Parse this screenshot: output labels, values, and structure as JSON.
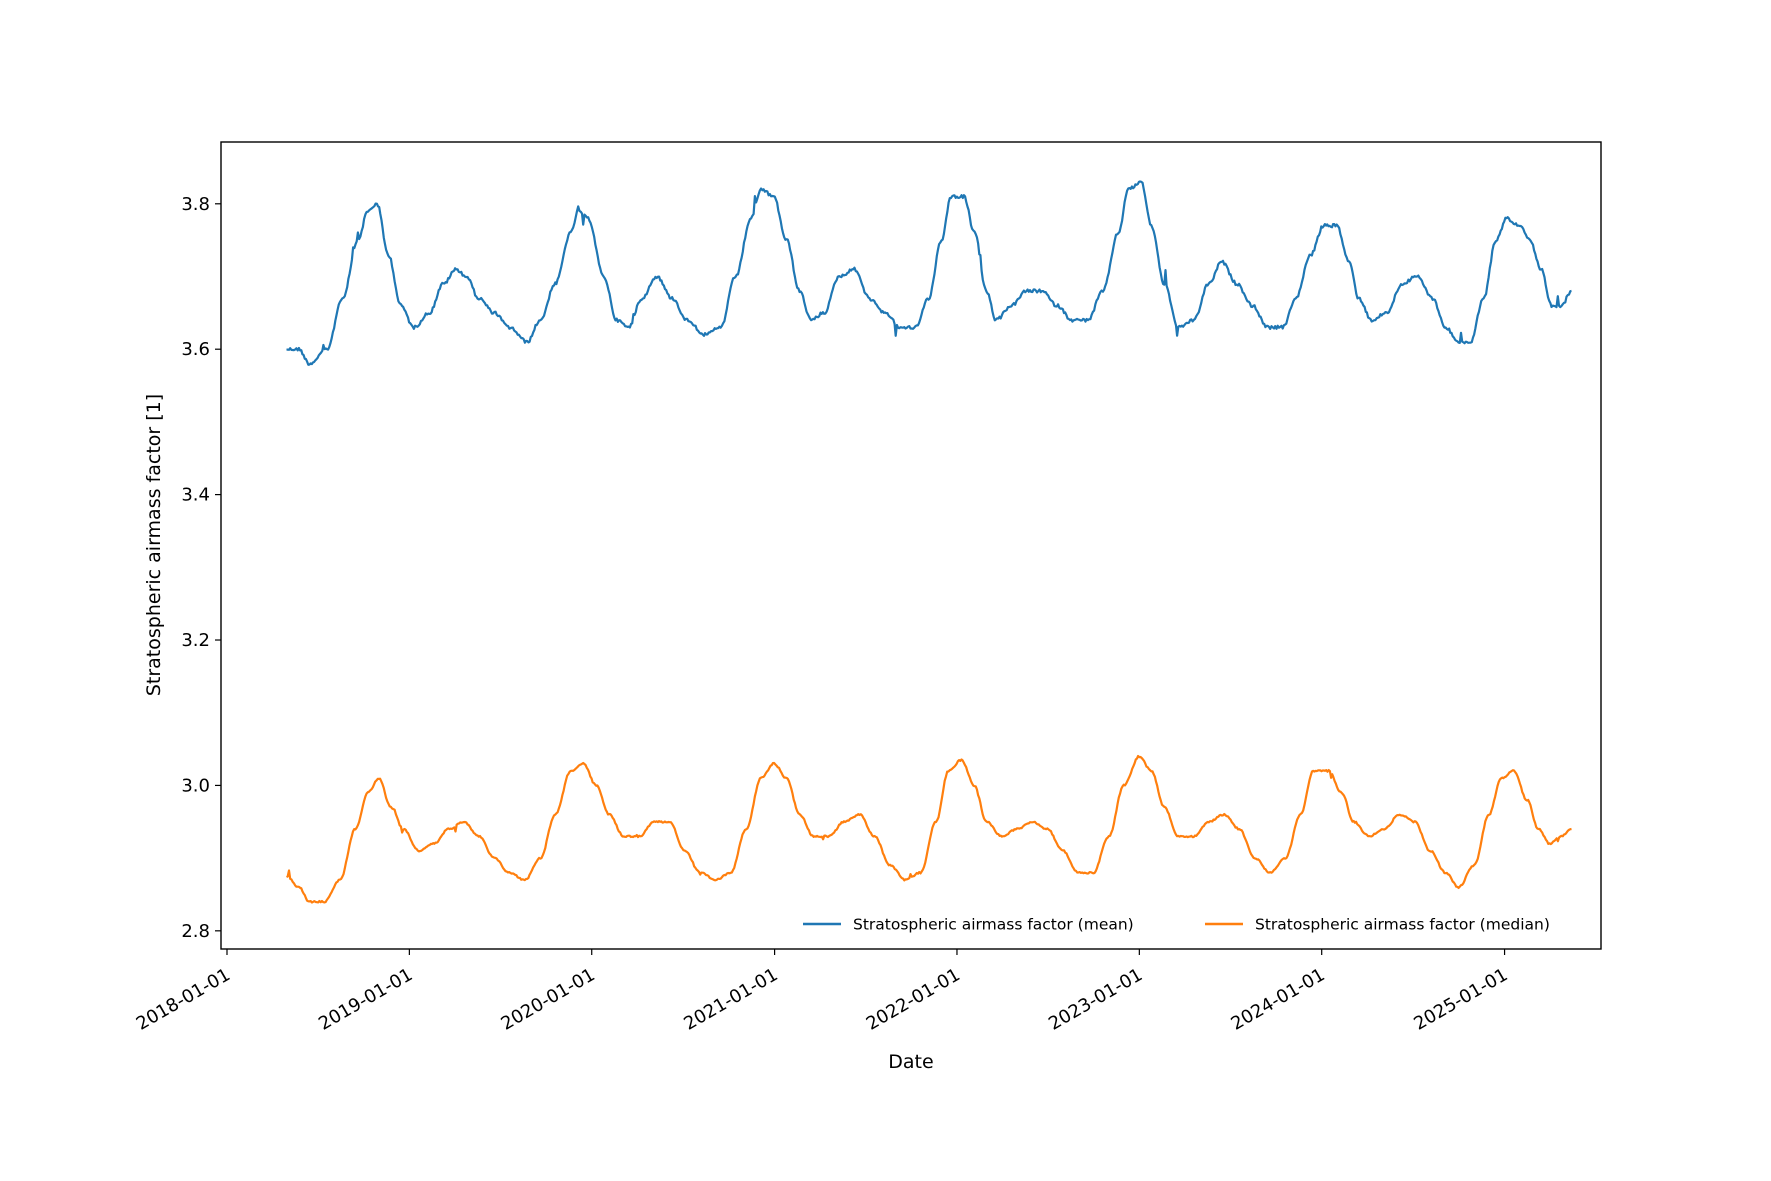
{
  "chart_data": {
    "type": "line",
    "xlabel": "Date",
    "ylabel": "Stratospheric airmass factor [1]",
    "x_ticks": [
      "2018-01-01",
      "2019-01-01",
      "2020-01-01",
      "2021-01-01",
      "2022-01-01",
      "2023-01-01",
      "2024-01-01",
      "2025-01-01"
    ],
    "y_ticks": [
      "2.8",
      "3.0",
      "3.2",
      "3.4",
      "3.6",
      "3.8"
    ],
    "xlim": [
      "2017-12-20",
      "2025-07-13"
    ],
    "ylim": [
      2.775,
      3.885
    ],
    "grid": false,
    "legend_position": "lower-right",
    "series": [
      {
        "name": "Stratospheric airmass factor (mean)",
        "color": "#1f77b4",
        "points": [
          [
            "2018-04-30",
            3.6
          ],
          [
            "2018-05-25",
            3.6
          ],
          [
            "2018-06-15",
            3.58
          ],
          [
            "2018-07-20",
            3.6
          ],
          [
            "2018-08-20",
            3.67
          ],
          [
            "2018-09-20",
            3.75
          ],
          [
            "2018-10-10",
            3.79
          ],
          [
            "2018-10-28",
            3.8
          ],
          [
            "2018-11-20",
            3.73
          ],
          [
            "2018-12-15",
            3.66
          ],
          [
            "2019-01-10",
            3.63
          ],
          [
            "2019-02-10",
            3.65
          ],
          [
            "2019-03-10",
            3.69
          ],
          [
            "2019-04-05",
            3.71
          ],
          [
            "2019-04-25",
            3.7
          ],
          [
            "2019-05-20",
            3.67
          ],
          [
            "2019-06-20",
            3.65
          ],
          [
            "2019-07-20",
            3.63
          ],
          [
            "2019-08-25",
            3.61
          ],
          [
            "2019-09-20",
            3.64
          ],
          [
            "2019-10-20",
            3.69
          ],
          [
            "2019-11-20",
            3.76
          ],
          [
            "2019-12-05",
            3.79
          ],
          [
            "2019-12-25",
            3.78
          ],
          [
            "2020-01-25",
            3.7
          ],
          [
            "2020-02-20",
            3.64
          ],
          [
            "2020-03-15",
            3.63
          ],
          [
            "2020-04-10",
            3.67
          ],
          [
            "2020-05-10",
            3.7
          ],
          [
            "2020-06-10",
            3.67
          ],
          [
            "2020-07-10",
            3.64
          ],
          [
            "2020-08-15",
            3.62
          ],
          [
            "2020-09-15",
            3.63
          ],
          [
            "2020-10-15",
            3.7
          ],
          [
            "2020-11-15",
            3.78
          ],
          [
            "2020-12-05",
            3.82
          ],
          [
            "2020-12-30",
            3.81
          ],
          [
            "2021-01-25",
            3.75
          ],
          [
            "2021-02-20",
            3.68
          ],
          [
            "2021-03-15",
            3.64
          ],
          [
            "2021-04-10",
            3.65
          ],
          [
            "2021-05-10",
            3.7
          ],
          [
            "2021-06-10",
            3.71
          ],
          [
            "2021-07-10",
            3.67
          ],
          [
            "2021-08-10",
            3.65
          ],
          [
            "2021-09-10",
            3.63
          ],
          [
            "2021-10-10",
            3.63
          ],
          [
            "2021-11-05",
            3.67
          ],
          [
            "2021-12-01",
            3.75
          ],
          [
            "2021-12-20",
            3.81
          ],
          [
            "2022-01-15",
            3.81
          ],
          [
            "2022-02-05",
            3.76
          ],
          [
            "2022-03-01",
            3.68
          ],
          [
            "2022-03-20",
            3.64
          ],
          [
            "2022-04-20",
            3.66
          ],
          [
            "2022-05-20",
            3.68
          ],
          [
            "2022-06-20",
            3.68
          ],
          [
            "2022-07-20",
            3.66
          ],
          [
            "2022-08-20",
            3.64
          ],
          [
            "2022-09-20",
            3.64
          ],
          [
            "2022-10-20",
            3.68
          ],
          [
            "2022-11-20",
            3.76
          ],
          [
            "2022-12-10",
            3.82
          ],
          [
            "2023-01-05",
            3.83
          ],
          [
            "2023-01-25",
            3.77
          ],
          [
            "2023-02-20",
            3.69
          ],
          [
            "2023-03-20",
            3.63
          ],
          [
            "2023-04-20",
            3.64
          ],
          [
            "2023-05-20",
            3.69
          ],
          [
            "2023-06-15",
            3.72
          ],
          [
            "2023-07-15",
            3.69
          ],
          [
            "2023-08-15",
            3.66
          ],
          [
            "2023-09-15",
            3.63
          ],
          [
            "2023-10-15",
            3.63
          ],
          [
            "2023-11-10",
            3.67
          ],
          [
            "2023-12-10",
            3.73
          ],
          [
            "2024-01-05",
            3.77
          ],
          [
            "2024-01-31",
            3.77
          ],
          [
            "2024-02-25",
            3.72
          ],
          [
            "2024-03-15",
            3.67
          ],
          [
            "2024-04-10",
            3.64
          ],
          [
            "2024-05-10",
            3.65
          ],
          [
            "2024-06-10",
            3.69
          ],
          [
            "2024-07-10",
            3.7
          ],
          [
            "2024-08-10",
            3.67
          ],
          [
            "2024-09-05",
            3.63
          ],
          [
            "2024-10-01",
            3.61
          ],
          [
            "2024-10-25",
            3.61
          ],
          [
            "2024-11-20",
            3.67
          ],
          [
            "2024-12-15",
            3.75
          ],
          [
            "2025-01-05",
            3.78
          ],
          [
            "2025-01-31",
            3.77
          ],
          [
            "2025-02-20",
            3.75
          ],
          [
            "2025-03-15",
            3.71
          ],
          [
            "2025-04-05",
            3.66
          ],
          [
            "2025-04-25",
            3.66
          ],
          [
            "2025-05-15",
            3.68
          ]
        ]
      },
      {
        "name": "Stratospheric airmass factor (median)",
        "color": "#ff7f0e",
        "points": [
          [
            "2018-04-30",
            2.875
          ],
          [
            "2018-05-25",
            2.86
          ],
          [
            "2018-06-15",
            2.84
          ],
          [
            "2018-07-15",
            2.84
          ],
          [
            "2018-08-15",
            2.87
          ],
          [
            "2018-09-15",
            2.94
          ],
          [
            "2018-10-10",
            2.99
          ],
          [
            "2018-11-01",
            3.01
          ],
          [
            "2018-11-25",
            2.97
          ],
          [
            "2018-12-20",
            2.94
          ],
          [
            "2019-01-20",
            2.91
          ],
          [
            "2019-02-20",
            2.92
          ],
          [
            "2019-03-20",
            2.94
          ],
          [
            "2019-04-20",
            2.95
          ],
          [
            "2019-05-20",
            2.93
          ],
          [
            "2019-06-20",
            2.9
          ],
          [
            "2019-07-20",
            2.88
          ],
          [
            "2019-08-20",
            2.87
          ],
          [
            "2019-09-20",
            2.9
          ],
          [
            "2019-10-20",
            2.96
          ],
          [
            "2019-11-20",
            3.02
          ],
          [
            "2019-12-15",
            3.03
          ],
          [
            "2020-01-10",
            3.0
          ],
          [
            "2020-02-05",
            2.96
          ],
          [
            "2020-03-05",
            2.93
          ],
          [
            "2020-04-05",
            2.93
          ],
          [
            "2020-05-05",
            2.95
          ],
          [
            "2020-06-05",
            2.95
          ],
          [
            "2020-07-05",
            2.91
          ],
          [
            "2020-08-05",
            2.88
          ],
          [
            "2020-09-05",
            2.87
          ],
          [
            "2020-10-05",
            2.88
          ],
          [
            "2020-11-05",
            2.94
          ],
          [
            "2020-12-05",
            3.01
          ],
          [
            "2020-12-31",
            3.03
          ],
          [
            "2021-01-25",
            3.01
          ],
          [
            "2021-02-20",
            2.96
          ],
          [
            "2021-03-20",
            2.93
          ],
          [
            "2021-04-20",
            2.93
          ],
          [
            "2021-05-20",
            2.95
          ],
          [
            "2021-06-20",
            2.96
          ],
          [
            "2021-07-20",
            2.93
          ],
          [
            "2021-08-20",
            2.89
          ],
          [
            "2021-09-20",
            2.87
          ],
          [
            "2021-10-20",
            2.88
          ],
          [
            "2021-11-20",
            2.95
          ],
          [
            "2021-12-15",
            3.02
          ],
          [
            "2022-01-10",
            3.035
          ],
          [
            "2022-02-05",
            3.0
          ],
          [
            "2022-03-01",
            2.95
          ],
          [
            "2022-04-01",
            2.93
          ],
          [
            "2022-05-01",
            2.94
          ],
          [
            "2022-06-01",
            2.95
          ],
          [
            "2022-07-01",
            2.94
          ],
          [
            "2022-08-01",
            2.91
          ],
          [
            "2022-09-01",
            2.88
          ],
          [
            "2022-10-01",
            2.88
          ],
          [
            "2022-11-01",
            2.93
          ],
          [
            "2022-12-01",
            3.0
          ],
          [
            "2023-01-01",
            3.04
          ],
          [
            "2023-01-25",
            3.02
          ],
          [
            "2023-02-20",
            2.97
          ],
          [
            "2023-03-20",
            2.93
          ],
          [
            "2023-04-20",
            2.93
          ],
          [
            "2023-05-20",
            2.95
          ],
          [
            "2023-06-20",
            2.96
          ],
          [
            "2023-07-20",
            2.94
          ],
          [
            "2023-08-20",
            2.9
          ],
          [
            "2023-09-20",
            2.88
          ],
          [
            "2023-10-20",
            2.9
          ],
          [
            "2023-11-20",
            2.96
          ],
          [
            "2023-12-15",
            3.02
          ],
          [
            "2024-01-15",
            3.02
          ],
          [
            "2024-02-10",
            2.99
          ],
          [
            "2024-03-05",
            2.95
          ],
          [
            "2024-04-05",
            2.93
          ],
          [
            "2024-05-05",
            2.94
          ],
          [
            "2024-06-05",
            2.96
          ],
          [
            "2024-07-05",
            2.95
          ],
          [
            "2024-08-05",
            2.91
          ],
          [
            "2024-09-05",
            2.88
          ],
          [
            "2024-10-01",
            2.86
          ],
          [
            "2024-11-01",
            2.89
          ],
          [
            "2024-12-01",
            2.96
          ],
          [
            "2024-12-25",
            3.01
          ],
          [
            "2025-01-20",
            3.02
          ],
          [
            "2025-02-15",
            2.98
          ],
          [
            "2025-03-10",
            2.94
          ],
          [
            "2025-04-01",
            2.92
          ],
          [
            "2025-04-25",
            2.93
          ],
          [
            "2025-05-15",
            2.94
          ]
        ]
      }
    ]
  }
}
